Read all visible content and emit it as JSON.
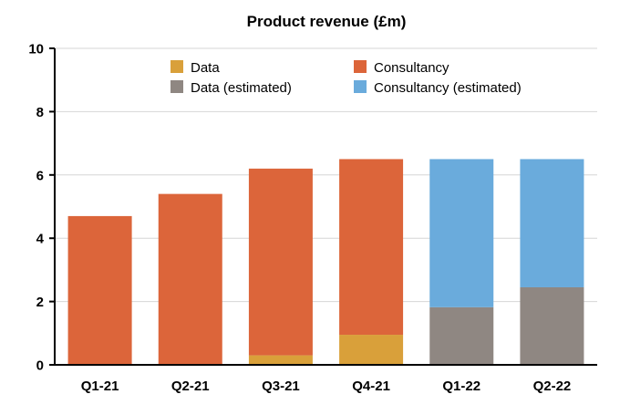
{
  "chart_data": {
    "type": "bar",
    "stacked": true,
    "title": "Product revenue (£m)",
    "xlabel": "",
    "ylabel": "",
    "categories": [
      "Q1-21",
      "Q2-21",
      "Q3-21",
      "Q4-21",
      "Q1-22",
      "Q2-22"
    ],
    "ylim": [
      0,
      10
    ],
    "yticks": [
      0,
      2,
      4,
      6,
      8,
      10
    ],
    "grid": true,
    "legend_position": "top",
    "series": [
      {
        "name": "Data",
        "color": "#d9a03a",
        "values": [
          0,
          0,
          0.3,
          0.95,
          0,
          0
        ]
      },
      {
        "name": "Consultancy",
        "color": "#dc653a",
        "values": [
          4.7,
          5.4,
          5.9,
          5.55,
          0,
          0
        ]
      },
      {
        "name": "Data (estimated)",
        "color": "#8f8782",
        "values": [
          0,
          0,
          0,
          0,
          1.82,
          2.45
        ]
      },
      {
        "name": "Consultancy (estimated)",
        "color": "#6aabdc",
        "values": [
          0,
          0,
          0,
          0,
          4.68,
          4.05
        ]
      }
    ]
  }
}
